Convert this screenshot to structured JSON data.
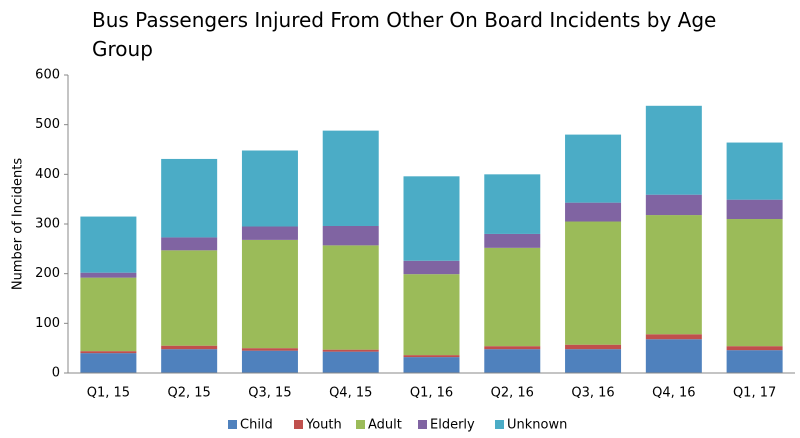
{
  "chart_data": {
    "type": "stacked_bar",
    "title": "Bus Passengers Injured From Other On Board Incidents by Age Group",
    "y_label": "Number of Incidents",
    "categories": [
      "Q1, 15",
      "Q2, 15",
      "Q3, 15",
      "Q4, 15",
      "Q1, 16",
      "Q2, 16",
      "Q3, 16",
      "Q4, 16",
      "Q1, 17"
    ],
    "series": [
      {
        "name": "Child",
        "color": "#4f81bd",
        "values": [
          40,
          48,
          45,
          43,
          32,
          48,
          48,
          68,
          46
        ]
      },
      {
        "name": "Youth",
        "color": "#c0504d",
        "values": [
          4,
          7,
          5,
          4,
          4,
          6,
          9,
          10,
          8
        ]
      },
      {
        "name": "Adult",
        "color": "#9bbb59",
        "values": [
          148,
          192,
          218,
          210,
          163,
          198,
          248,
          240,
          256
        ]
      },
      {
        "name": "Elderly",
        "color": "#8064a2",
        "values": [
          10,
          26,
          27,
          39,
          27,
          28,
          38,
          41,
          39
        ]
      },
      {
        "name": "Unknown",
        "color": "#4bacc6",
        "values": [
          113,
          158,
          153,
          192,
          170,
          120,
          137,
          179,
          115
        ]
      }
    ],
    "ylim": [
      0,
      600
    ],
    "yticks": [
      0,
      100,
      200,
      300,
      400,
      500,
      600
    ],
    "grid": false,
    "legend": "bottom"
  }
}
